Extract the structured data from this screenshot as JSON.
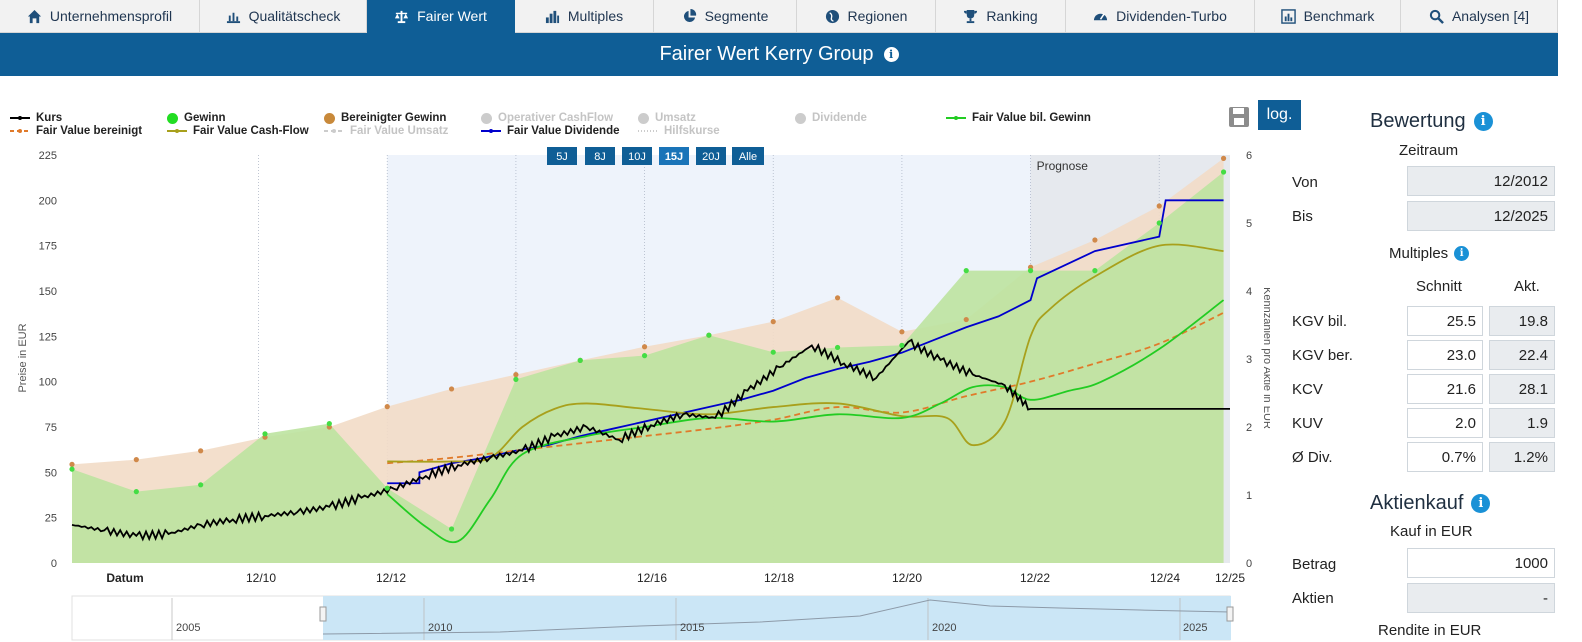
{
  "tabs": [
    {
      "label": "Unternehmensprofil",
      "icon": "home-icon"
    },
    {
      "label": "Qualitätscheck",
      "icon": "bar-chart-icon"
    },
    {
      "label": "Fairer Wert",
      "icon": "scale-icon",
      "active": true
    },
    {
      "label": "Multiples",
      "icon": "column-chart-icon"
    },
    {
      "label": "Segmente",
      "icon": "pie-chart-icon"
    },
    {
      "label": "Regionen",
      "icon": "globe-icon"
    },
    {
      "label": "Ranking",
      "icon": "trophy-icon"
    },
    {
      "label": "Dividenden-Turbo",
      "icon": "speedometer-icon"
    },
    {
      "label": "Benchmark",
      "icon": "benchmark-icon"
    },
    {
      "label": "Analysen [4]",
      "icon": "search-icon"
    }
  ],
  "header": {
    "title": "Fairer Wert Kerry Group"
  },
  "legend": [
    {
      "label": "Kurs",
      "active": true,
      "color": "#000000",
      "style": "line"
    },
    {
      "label": "Fair Value bereinigt",
      "active": true,
      "color": "#e07a2a",
      "style": "dash"
    },
    {
      "label": "Gewinn",
      "active": true,
      "color": "#22dd22",
      "style": "dot"
    },
    {
      "label": "Fair Value Cash-Flow",
      "active": true,
      "color": "#a8a01c",
      "style": "line"
    },
    {
      "label": "Bereinigter Gewinn",
      "active": true,
      "color": "#c8893a",
      "style": "dot"
    },
    {
      "label": "Fair Value Umsatz",
      "active": false,
      "color": "#cccccc",
      "style": "dash"
    },
    {
      "label": "Operativer CashFlow",
      "active": false,
      "color": "#cccccc",
      "style": "dot"
    },
    {
      "label": "Fair Value Dividende",
      "active": true,
      "color": "#0000cc",
      "style": "line"
    },
    {
      "label": "Umsatz",
      "active": false,
      "color": "#cccccc",
      "style": "dot"
    },
    {
      "label": "Hilfskurse",
      "active": false,
      "color": "#cccccc",
      "style": "dotted"
    },
    {
      "label": "Dividende",
      "active": false,
      "color": "#cccccc",
      "style": "dot"
    },
    {
      "label": "Fair Value bil. Gewinn",
      "active": true,
      "color": "#22cc22",
      "style": "line"
    }
  ],
  "controls": {
    "log_label": "log."
  },
  "range_buttons": [
    "5J",
    "8J",
    "10J",
    "15J",
    "20J",
    "Alle"
  ],
  "active_range": "15J",
  "chart_data": {
    "type": "line",
    "left_axis": {
      "label": "Preise in EUR",
      "ticks": [
        0,
        25,
        50,
        75,
        100,
        125,
        150,
        175,
        200,
        225
      ],
      "range": [
        0,
        225
      ]
    },
    "right_axis": {
      "label": "Kennzahlen pro Aktie in EUR",
      "ticks": [
        0,
        1,
        2,
        3,
        4,
        5,
        6
      ],
      "range": [
        0,
        6
      ]
    },
    "x_axis": {
      "ticks": [
        "Datum",
        "12/10",
        "12/12",
        "12/14",
        "12/16",
        "12/18",
        "12/20",
        "12/22",
        "12/24",
        "12/25"
      ],
      "range": [
        2008.0,
        2026.0
      ]
    },
    "annotation": "Prognose",
    "forecast_from": 2022.9,
    "selection_from": 2012.9,
    "series": [
      {
        "name": "Bereinigter Gewinn",
        "axis": "right",
        "color": "#c8893a",
        "x": [
          2008.0,
          2009.0,
          2010.0,
          2011.0,
          2012.0,
          2012.9,
          2013.9,
          2014.9,
          2015.9,
          2016.9,
          2017.9,
          2018.9,
          2019.9,
          2020.9,
          2021.9,
          2022.9,
          2023.9,
          2024.9,
          2025.9
        ],
        "y": [
          1.45,
          1.52,
          1.65,
          1.85,
          2.0,
          2.3,
          2.56,
          2.77,
          2.98,
          3.18,
          3.35,
          3.55,
          3.9,
          3.4,
          3.58,
          4.35,
          4.75,
          5.25,
          5.95
        ]
      },
      {
        "name": "Gewinn",
        "axis": "right",
        "color": "#22dd22",
        "x": [
          2008.0,
          2009.0,
          2010.0,
          2011.0,
          2012.0,
          2012.9,
          2013.9,
          2014.9,
          2015.9,
          2016.9,
          2017.9,
          2018.9,
          2019.9,
          2020.9,
          2021.9,
          2022.9,
          2023.9,
          2024.9,
          2025.9
        ],
        "y": [
          1.38,
          1.05,
          1.15,
          1.9,
          2.05,
          1.1,
          0.5,
          2.7,
          2.98,
          3.05,
          3.35,
          3.1,
          3.17,
          3.2,
          4.3,
          4.3,
          4.3,
          5.0,
          5.75
        ]
      },
      {
        "name": "Kurs",
        "axis": "left",
        "color": "#000000",
        "x": [
          2008.0,
          2008.5,
          2009.0,
          2009.5,
          2010.0,
          2010.5,
          2011.0,
          2011.5,
          2012.0,
          2012.5,
          2013.0,
          2013.5,
          2014.0,
          2014.5,
          2015.0,
          2015.5,
          2016.0,
          2016.5,
          2017.0,
          2017.5,
          2018.0,
          2018.5,
          2019.0,
          2019.5,
          2020.0,
          2020.5,
          2021.0,
          2021.5,
          2022.0,
          2022.5,
          2022.9,
          2026.0
        ],
        "y": [
          21,
          18,
          15,
          16,
          21,
          24,
          26,
          28,
          31,
          36,
          41,
          48,
          54,
          58,
          62,
          70,
          75,
          68,
          76,
          82,
          80,
          95,
          108,
          120,
          110,
          102,
          122,
          112,
          104,
          98,
          85,
          85
        ]
      },
      {
        "name": "Fair Value Dividende",
        "axis": "left",
        "color": "#0000cc",
        "x": [
          2012.9,
          2013.4,
          2013.4,
          2013.9,
          2014.4,
          2014.9,
          2015.4,
          2015.9,
          2016.4,
          2016.9,
          2017.4,
          2017.9,
          2018.4,
          2018.9,
          2019.4,
          2019.9,
          2020.4,
          2020.9,
          2021.4,
          2021.9,
          2022.4,
          2022.9,
          2023.0,
          2023.9,
          2024.9,
          2025.0,
          2025.9
        ],
        "y": [
          44,
          44,
          50,
          55,
          58,
          62,
          65,
          70,
          74,
          78,
          82,
          86,
          90,
          95,
          102,
          107,
          111,
          116,
          123,
          130,
          136,
          145,
          157,
          172,
          180,
          200,
          200
        ]
      },
      {
        "name": "Fair Value bereinigt",
        "axis": "left",
        "color": "#e07a2a",
        "x": [
          2012.9,
          2013.9,
          2014.9,
          2015.9,
          2016.9,
          2017.9,
          2018.9,
          2019.9,
          2020.9,
          2021.9,
          2022.9,
          2023.9,
          2024.9,
          2025.9
        ],
        "y": [
          55,
          58,
          62,
          66,
          70,
          74,
          79,
          86,
          83,
          92,
          100,
          110,
          121,
          138
        ]
      },
      {
        "name": "Fair Value Cash-Flow",
        "axis": "left",
        "color": "#a8a01c",
        "x": [
          2012.9,
          2013.9,
          2014.5,
          2015.0,
          2015.5,
          2016.0,
          2016.9,
          2017.9,
          2018.9,
          2019.9,
          2020.9,
          2021.6,
          2022.0,
          2022.5,
          2022.9,
          2023.2,
          2023.9,
          2024.9,
          2025.9
        ],
        "y": [
          56,
          56,
          58,
          75,
          85,
          88,
          85,
          82,
          86,
          88,
          81,
          80,
          65,
          78,
          125,
          140,
          158,
          175,
          172
        ]
      },
      {
        "name": "Fair Value bil. Gewinn",
        "axis": "left",
        "color": "#22cc22",
        "x": [
          2012.9,
          2013.5,
          2014.0,
          2014.5,
          2015.0,
          2016.0,
          2016.9,
          2017.9,
          2018.9,
          2019.9,
          2020.9,
          2021.5,
          2022.0,
          2022.5,
          2022.9,
          2023.5,
          2024.0,
          2024.9,
          2025.9
        ],
        "y": [
          38,
          20,
          12,
          35,
          60,
          70,
          75,
          80,
          78,
          82,
          80,
          88,
          97,
          97,
          90,
          95,
          100,
          118,
          145
        ]
      }
    ]
  },
  "navigator": {
    "labels": [
      "2005",
      "2010",
      "2015",
      "2020",
      "2025"
    ]
  },
  "panel": {
    "bewertung": {
      "title": "Bewertung",
      "zeitraum_label": "Zeitraum",
      "von_label": "Von",
      "von_value": "12/2012",
      "bis_label": "Bis",
      "bis_value": "12/2025"
    },
    "multiples": {
      "title": "Multiples",
      "col_schnitt": "Schnitt",
      "col_akt": "Akt.",
      "rows": [
        {
          "label": "KGV bil.",
          "schnitt": "25.5",
          "akt": "19.8"
        },
        {
          "label": "KGV ber.",
          "schnitt": "23.0",
          "akt": "22.4"
        },
        {
          "label": "KCV",
          "schnitt": "21.6",
          "akt": "28.1"
        },
        {
          "label": "KUV",
          "schnitt": "2.0",
          "akt": "1.9"
        },
        {
          "label": "Ø Div.",
          "schnitt": "0.7%",
          "akt": "1.2%"
        }
      ]
    },
    "aktienkauf": {
      "title": "Aktienkauf",
      "kauf_label": "Kauf in EUR",
      "betrag_label": "Betrag",
      "betrag_value": "1000",
      "aktien_label": "Aktien",
      "aktien_value": "-",
      "rendite_label": "Rendite in EUR"
    }
  }
}
